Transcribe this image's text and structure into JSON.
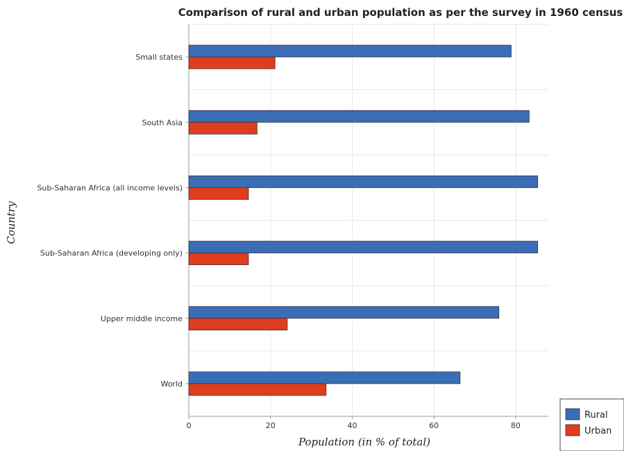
{
  "chart_data": {
    "type": "bar",
    "orientation": "horizontal",
    "title": "Comparison of rural and urban population as per the survey in 1960 census",
    "xlabel": "Population (in % of total)",
    "ylabel": "Country",
    "xlim": [
      0,
      88
    ],
    "x_ticks": [
      0,
      20,
      40,
      60,
      80
    ],
    "categories": [
      "Small states",
      "South Asia",
      "Sub-Saharan Africa (all income levels)",
      "Sub-Saharan Africa (developing only)",
      "Upper middle income",
      "World"
    ],
    "series": [
      {
        "name": "Rural",
        "color": "#3a6db5",
        "values": [
          78.9,
          83.3,
          85.4,
          85.4,
          75.9,
          66.4
        ]
      },
      {
        "name": "Urban",
        "color": "#e03c1e",
        "values": [
          21.1,
          16.7,
          14.6,
          14.6,
          24.1,
          33.6
        ]
      }
    ],
    "grid": true,
    "legend_position": "bottom-right"
  }
}
